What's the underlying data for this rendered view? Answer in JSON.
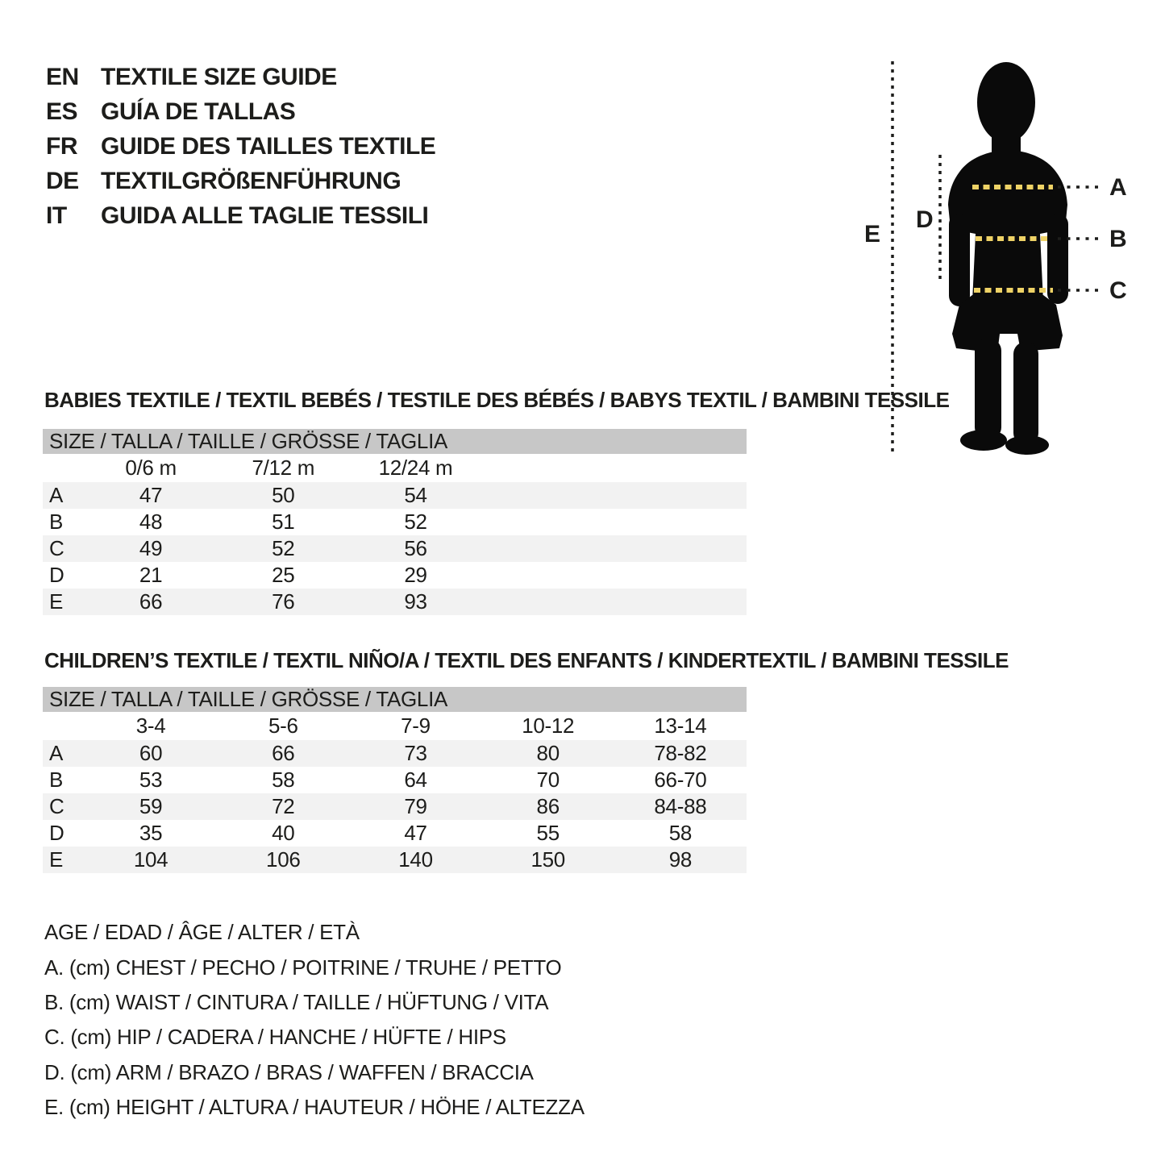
{
  "header": {
    "entries": [
      {
        "lang": "EN",
        "title": "TEXTILE SIZE GUIDE"
      },
      {
        "lang": "ES",
        "title": "GUÍA DE TALLAS"
      },
      {
        "lang": "FR",
        "title": "GUIDE DES TAILLES TEXTILE"
      },
      {
        "lang": "DE",
        "title": "TEXTILGRÖßENFÜHRUNG"
      },
      {
        "lang": "IT",
        "title": "GUIDA ALLE TAGLIE TESSILI"
      }
    ]
  },
  "figure": {
    "labels": [
      "A",
      "B",
      "C",
      "D",
      "E"
    ]
  },
  "tables": [
    {
      "title": "BABIES TEXTILE / TEXTIL BEBÉS / TESTILE DES BÉBÉS / BABYS TEXTIL / BAMBINI TESSILE",
      "size_header": "SIZE / TALLA / TAILLE / GRÖSSE / TAGLIA",
      "columns": [
        "0/6 m",
        "7/12 m",
        "12/24 m"
      ],
      "rows": [
        {
          "label": "A",
          "values": [
            "47",
            "50",
            "54"
          ]
        },
        {
          "label": "B",
          "values": [
            "48",
            "51",
            "52"
          ]
        },
        {
          "label": "C",
          "values": [
            "49",
            "52",
            "56"
          ]
        },
        {
          "label": "D",
          "values": [
            "21",
            "25",
            "29"
          ]
        },
        {
          "label": "E",
          "values": [
            "66",
            "76",
            "93"
          ]
        }
      ]
    },
    {
      "title": "CHILDREN’S TEXTILE / TEXTIL NIÑO/A / TEXTIL DES ENFANTS / KINDERTEXTIL / BAMBINI TESSILE",
      "size_header": "SIZE / TALLA / TAILLE / GRÖSSE / TAGLIA",
      "columns": [
        "3-4",
        "5-6",
        "7-9",
        "10-12",
        "13-14"
      ],
      "rows": [
        {
          "label": "A",
          "values": [
            "60",
            "66",
            "73",
            "80",
            "78-82"
          ]
        },
        {
          "label": "B",
          "values": [
            "53",
            "58",
            "64",
            "70",
            "66-70"
          ]
        },
        {
          "label": "C",
          "values": [
            "59",
            "72",
            "79",
            "86",
            "84-88"
          ]
        },
        {
          "label": "D",
          "values": [
            "35",
            "40",
            "47",
            "55",
            "58"
          ]
        },
        {
          "label": "E",
          "values": [
            "104",
            "106",
            "140",
            "150",
            "98"
          ]
        }
      ]
    }
  ],
  "legend": {
    "lines": [
      "AGE / EDAD / ÂGE / ALTER / ETÀ",
      "A. (cm) CHEST / PECHO / POITRINE / TRUHE / PETTO",
      "B. (cm) WAIST / CINTURA / TAILLE / HÜFTUNG / VITA",
      "C. (cm) HIP / CADERA / HANCHE / HÜFTE / HIPS",
      "D. (cm) ARM / BRAZO / BRAS / WAFFEN / BRACCIA",
      "E. (cm) HEIGHT / ALTURA / HAUTEUR / HÖHE / ALTEZZA"
    ]
  },
  "colors": {
    "size_bar_bg": "#c7c7c7",
    "row_stripe_bg": "#f2f2f2",
    "silhouette": "#0a0a0a",
    "accent_yellow": "#eed266",
    "text": "#1d1d1b"
  }
}
